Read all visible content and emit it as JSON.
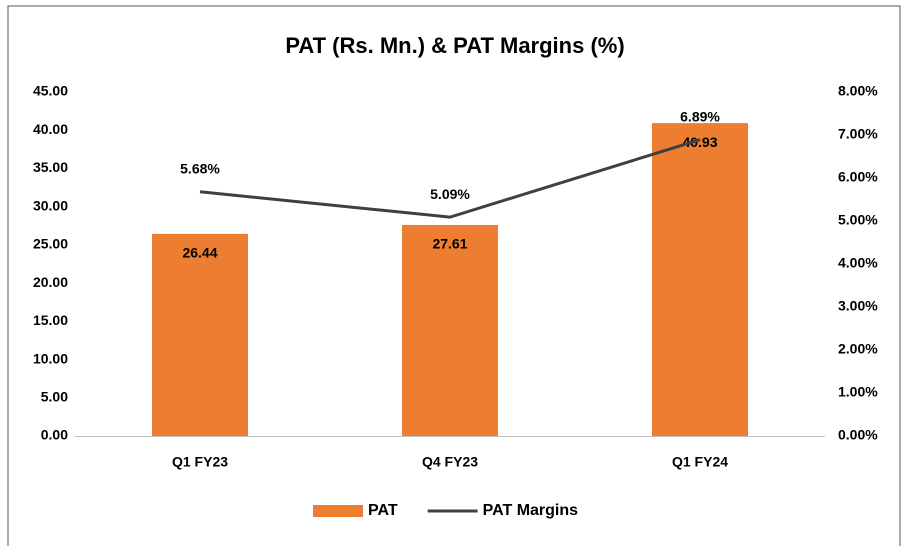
{
  "chart_data": {
    "type": "bar",
    "title": "PAT (Rs. Mn.) & PAT Margins (%)",
    "categories": [
      "Q1 FY23",
      "Q4 FY23",
      "Q1 FY24"
    ],
    "series": [
      {
        "name": "PAT",
        "type": "bar",
        "color": "#ed7d31",
        "values": [
          26.44,
          27.61,
          40.93
        ]
      },
      {
        "name": "PAT Margins",
        "type": "line",
        "axis": "y2",
        "color": "#404040",
        "values": [
          5.68,
          5.09,
          6.89
        ],
        "value_labels": [
          "5.68%",
          "5.09%",
          "6.89%"
        ]
      }
    ],
    "ylim": [
      0,
      45
    ],
    "yticks": [
      {
        "value": 0,
        "label": "0.00"
      },
      {
        "value": 5,
        "label": "5.00"
      },
      {
        "value": 10,
        "label": "10.00"
      },
      {
        "value": 15,
        "label": "15.00"
      },
      {
        "value": 20,
        "label": "20.00"
      },
      {
        "value": 25,
        "label": "25.00"
      },
      {
        "value": 30,
        "label": "30.00"
      },
      {
        "value": 35,
        "label": "35.00"
      },
      {
        "value": 40,
        "label": "40.00"
      },
      {
        "value": 45,
        "label": "45.00"
      }
    ],
    "y2lim": [
      0,
      8
    ],
    "y2ticks": [
      {
        "value": 0,
        "label": "0.00%"
      },
      {
        "value": 1,
        "label": "1.00%"
      },
      {
        "value": 2,
        "label": "2.00%"
      },
      {
        "value": 3,
        "label": "3.00%"
      },
      {
        "value": 4,
        "label": "4.00%"
      },
      {
        "value": 5,
        "label": "5.00%"
      },
      {
        "value": 6,
        "label": "6.00%"
      },
      {
        "value": 7,
        "label": "7.00%"
      },
      {
        "value": 8,
        "label": "8.00%"
      }
    ],
    "grid": false,
    "legend": "bottom"
  }
}
